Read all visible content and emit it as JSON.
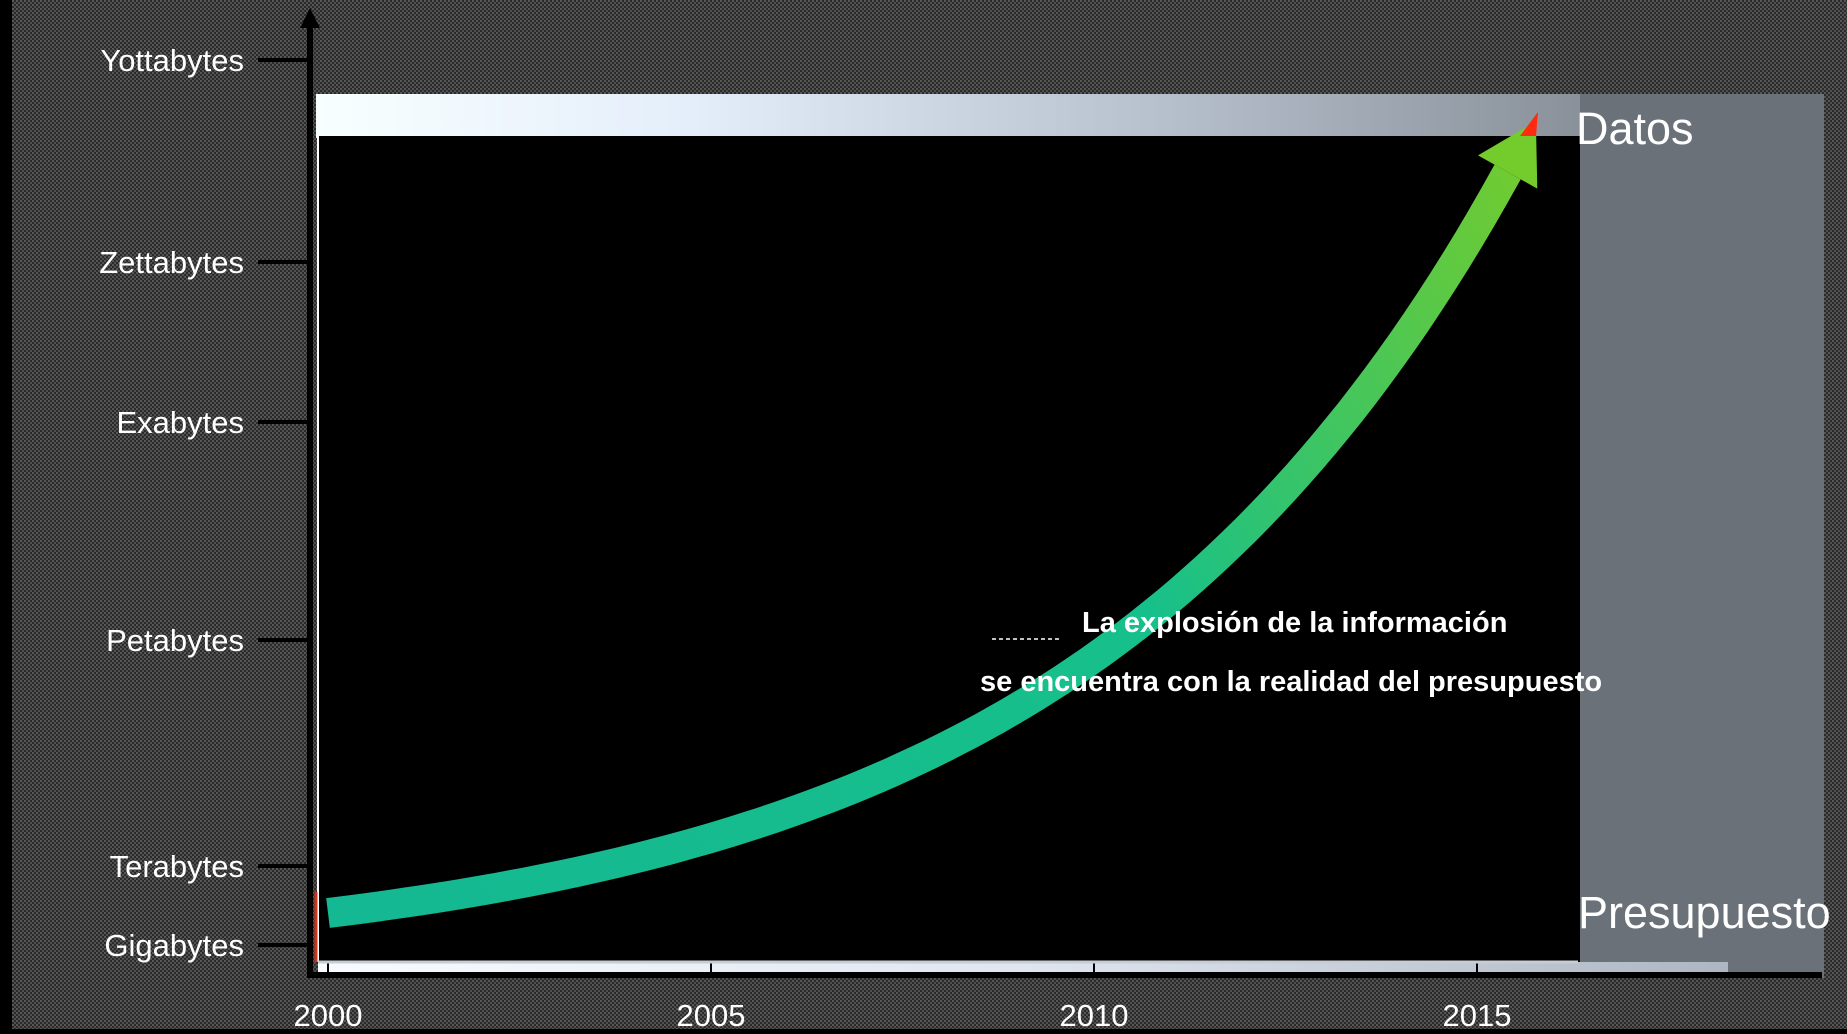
{
  "chart_data": {
    "type": "line",
    "title": "",
    "xlabel": "",
    "ylabel": "",
    "x_ticks": [
      "2000",
      "2005",
      "2010",
      "2015"
    ],
    "y_ticks": [
      "Gigabytes",
      "Terabytes",
      "Petabytes",
      "Exabytes",
      "Zettabytes",
      "Yottabytes"
    ],
    "xlim": [
      2000,
      2018
    ],
    "series": [
      {
        "name": "Datos",
        "color": "#14b892",
        "color_end": "#74cc2c",
        "x": [
          2000,
          2002,
          2004,
          2006,
          2008,
          2010,
          2012,
          2014,
          2016
        ],
        "y": [
          "Gigabytes",
          "between Gigabytes and Terabytes",
          "Terabytes",
          "between Terabytes and Petabytes",
          "Petabytes",
          "above Petabytes",
          "Exabytes",
          "Zettabytes",
          "Yottabytes"
        ]
      },
      {
        "name": "Presupuesto",
        "color": "#c8ccd4",
        "x": [
          2000,
          2018
        ],
        "y": [
          "Gigabytes",
          "Gigabytes"
        ]
      }
    ],
    "annotations": [
      "La explosión de la información",
      "se encuentra con la realidad del presupuesto"
    ],
    "grid": false
  }
}
